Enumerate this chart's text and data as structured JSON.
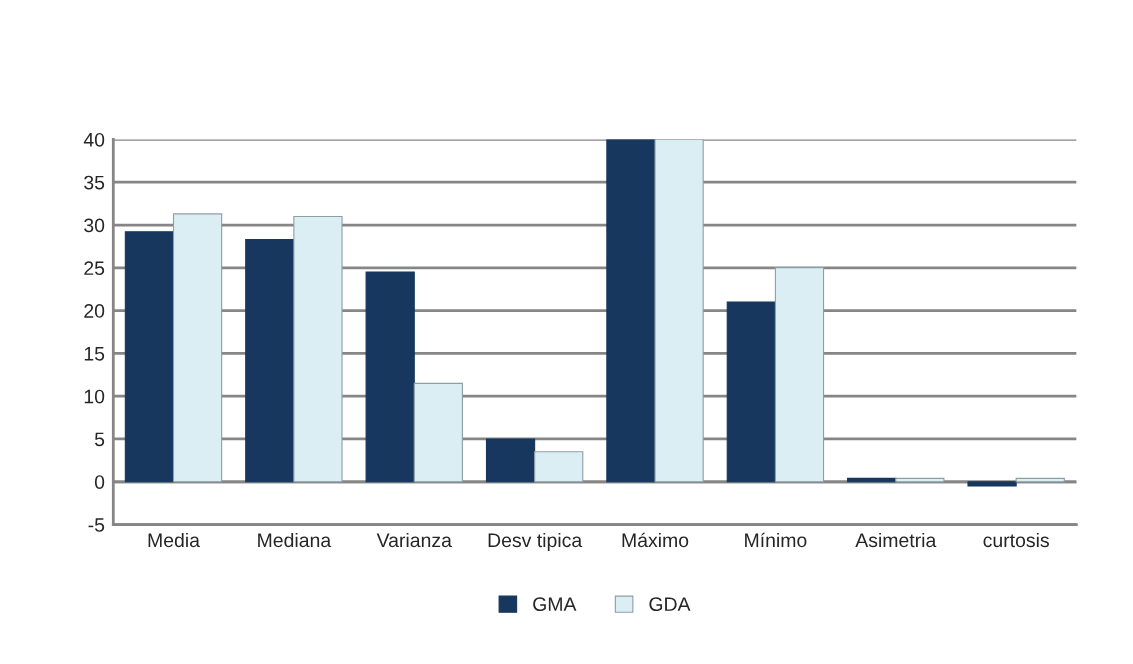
{
  "chart_data": {
    "type": "bar",
    "categories": [
      "Media",
      "Mediana",
      "Varianza",
      "Desv tipica",
      "Máximo",
      "Mínimo",
      "Asimetria",
      "curtosis"
    ],
    "series": [
      {
        "name": "GMA",
        "color": "#17375e",
        "values": [
          29.2,
          28.3,
          24.5,
          5.0,
          40,
          21.0,
          0.4,
          -0.5
        ]
      },
      {
        "name": "GDA",
        "color": "#dbeef4",
        "values": [
          31.3,
          31.0,
          11.5,
          3.5,
          40,
          25.0,
          0.4,
          0.4
        ]
      }
    ],
    "ylim": [
      -5,
      40
    ],
    "yticks": [
      -5,
      0,
      5,
      10,
      15,
      20,
      25,
      30,
      35,
      40
    ],
    "grid": "y",
    "legend": "bottom"
  }
}
